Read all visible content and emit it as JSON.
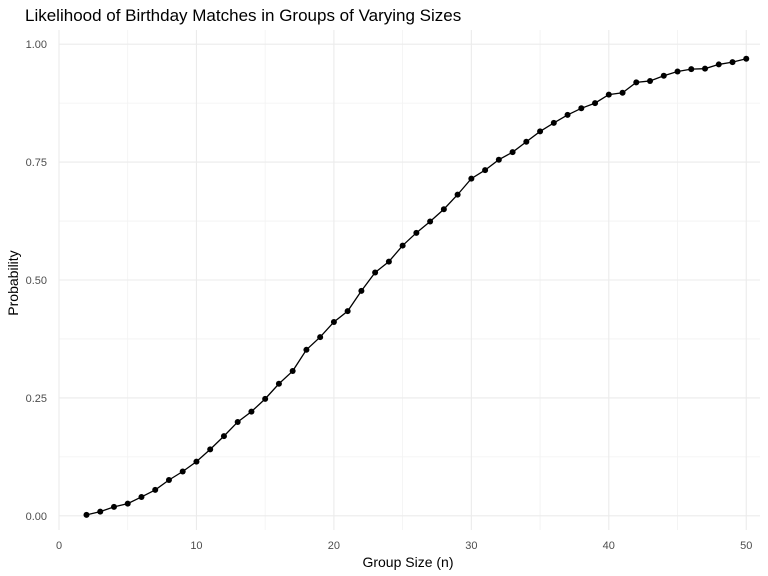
{
  "chart_data": {
    "type": "line",
    "title": "Likelihood of Birthday Matches in Groups of Varying Sizes",
    "xlabel": "Group Size (n)",
    "ylabel": "Probability",
    "xlim": [
      0,
      51
    ],
    "ylim": [
      -0.03,
      1.03
    ],
    "x_ticks": [
      0,
      10,
      20,
      30,
      40,
      50
    ],
    "x_tick_labels": [
      "0",
      "10",
      "20",
      "30",
      "40",
      "50"
    ],
    "y_ticks": [
      0,
      0.25,
      0.5,
      0.75,
      1.0
    ],
    "y_tick_labels": [
      "0.00",
      "0.25",
      "0.50",
      "0.75",
      "1.00"
    ],
    "grid": true,
    "legend": "none",
    "series": [
      {
        "name": "Probability",
        "color": "#000000",
        "x": [
          2,
          3,
          4,
          5,
          6,
          7,
          8,
          9,
          10,
          11,
          12,
          13,
          14,
          15,
          16,
          17,
          18,
          19,
          20,
          21,
          22,
          23,
          24,
          25,
          26,
          27,
          28,
          29,
          30,
          31,
          32,
          33,
          34,
          35,
          36,
          37,
          38,
          39,
          40,
          41,
          42,
          43,
          44,
          45,
          46,
          47,
          48,
          49,
          50
        ],
        "values": [
          0.002,
          0.009,
          0.019,
          0.026,
          0.04,
          0.055,
          0.076,
          0.094,
          0.115,
          0.141,
          0.169,
          0.199,
          0.221,
          0.248,
          0.28,
          0.307,
          0.352,
          0.379,
          0.411,
          0.434,
          0.477,
          0.516,
          0.539,
          0.573,
          0.6,
          0.624,
          0.65,
          0.681,
          0.715,
          0.733,
          0.755,
          0.771,
          0.793,
          0.815,
          0.833,
          0.85,
          0.864,
          0.875,
          0.893,
          0.897,
          0.919,
          0.922,
          0.933,
          0.942,
          0.947,
          0.948,
          0.957,
          0.962,
          0.969
        ]
      }
    ]
  }
}
